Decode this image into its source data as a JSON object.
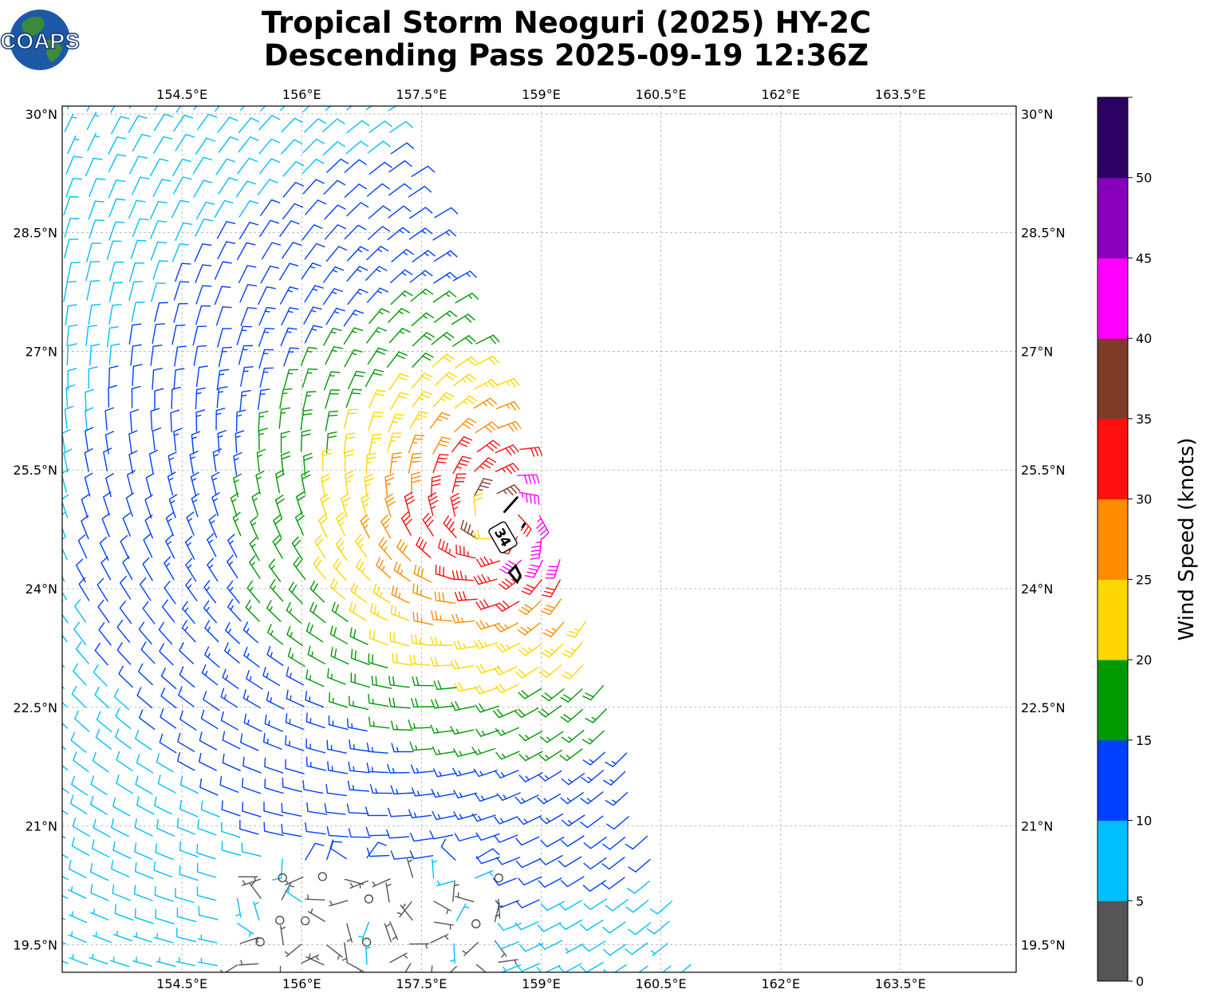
{
  "logo": {
    "text": "COAPS"
  },
  "chart_data": {
    "type": "scatter",
    "title_line1": "Tropical Storm Neoguri (2025) HY-2C",
    "title_line2": "Descending Pass 2025-09-19 12:36Z",
    "x_ticks": [
      "154.5°E",
      "156°E",
      "157.5°E",
      "159°E",
      "160.5°E",
      "162°E",
      "163.5°E"
    ],
    "x_tick_values": [
      154.5,
      156,
      157.5,
      159,
      160.5,
      162,
      163.5
    ],
    "y_ticks": [
      "30°N",
      "28.5°N",
      "27°N",
      "25.5°N",
      "24°N",
      "22.5°N",
      "21°N",
      "19.5°N"
    ],
    "y_tick_values": [
      30,
      28.5,
      27,
      25.5,
      24,
      22.5,
      21,
      19.5
    ],
    "xlim": [
      153.0,
      164.95
    ],
    "ylim": [
      19.15,
      30.1
    ],
    "storm_center": {
      "lon": 158.5,
      "lat": 24.85
    },
    "storm_label": "34",
    "colorbar": {
      "label": "Wind Speed (knots)",
      "bounds": [
        0,
        5,
        10,
        15,
        20,
        25,
        30,
        35,
        40,
        45,
        50,
        55
      ],
      "tick_labels": [
        "0",
        "5",
        "10",
        "15",
        "20",
        "25",
        "30",
        "35",
        "40",
        "45",
        "50"
      ],
      "colors": [
        "#555555",
        "#00bfff",
        "#0040ff",
        "#009900",
        "#ffd700",
        "#ff8c00",
        "#ff1010",
        "#803a28",
        "#ff00ff",
        "#8800bb",
        "#2a0060"
      ]
    }
  }
}
